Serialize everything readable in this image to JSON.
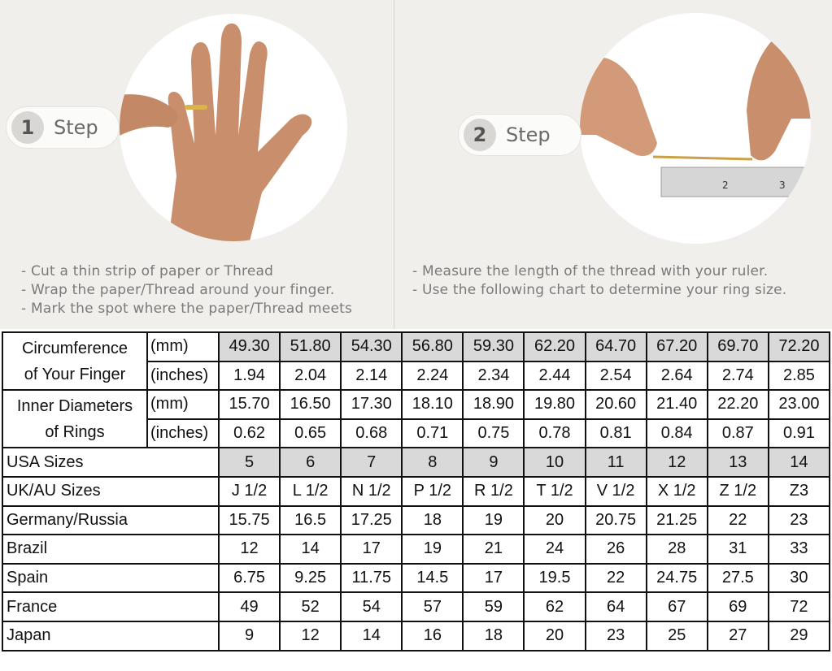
{
  "step1": {
    "number": "1",
    "label": "Step",
    "instructions": [
      "Cut a thin strip of paper or Thread",
      "Wrap the paper/Thread around your finger.",
      "Mark the spot where the paper/Thread meets"
    ]
  },
  "step2": {
    "number": "2",
    "label": "Step",
    "instructions": [
      "Measure the length of the thread with your ruler.",
      "Use the following chart to determine your ring size."
    ]
  },
  "colors": {
    "highlight_cell": "#d9d9d9",
    "background": "#f1efec"
  },
  "table": {
    "circumference": {
      "label_line1": "Circumference",
      "label_line2": "of Your Finger",
      "mm_unit": "(mm)",
      "in_unit": "(inches)",
      "mm": [
        "49.30",
        "51.80",
        "54.30",
        "56.80",
        "59.30",
        "62.20",
        "64.70",
        "67.20",
        "69.70",
        "72.20"
      ],
      "inches": [
        "1.94",
        "2.04",
        "2.14",
        "2.24",
        "2.34",
        "2.44",
        "2.54",
        "2.64",
        "2.74",
        "2.85"
      ]
    },
    "diameter": {
      "label_line1": "Inner Diameters",
      "label_line2": "of Rings",
      "mm_unit": "(mm)",
      "in_unit": "(inches)",
      "mm": [
        "15.70",
        "16.50",
        "17.30",
        "18.10",
        "18.90",
        "19.80",
        "20.60",
        "21.40",
        "22.20",
        "23.00"
      ],
      "inches": [
        "0.62",
        "0.65",
        "0.68",
        "0.71",
        "0.75",
        "0.78",
        "0.81",
        "0.84",
        "0.87",
        "0.91"
      ]
    },
    "rows": [
      {
        "label": "USA Sizes",
        "values": [
          "5",
          "6",
          "7",
          "8",
          "9",
          "10",
          "11",
          "12",
          "13",
          "14"
        ]
      },
      {
        "label": "UK/AU Sizes",
        "values": [
          "J 1/2",
          "L 1/2",
          "N 1/2",
          "P 1/2",
          "R 1/2",
          "T 1/2",
          "V 1/2",
          "X 1/2",
          "Z 1/2",
          "Z3"
        ]
      },
      {
        "label": "Germany/Russia",
        "values": [
          "15.75",
          "16.5",
          "17.25",
          "18",
          "19",
          "20",
          "20.75",
          "21.25",
          "22",
          "23"
        ]
      },
      {
        "label": "Brazil",
        "values": [
          "12",
          "14",
          "17",
          "19",
          "21",
          "24",
          "26",
          "28",
          "31",
          "33"
        ]
      },
      {
        "label": "Spain",
        "values": [
          "6.75",
          "9.25",
          "11.75",
          "14.5",
          "17",
          "19.5",
          "22",
          "24.75",
          "27.5",
          "30"
        ]
      },
      {
        "label": "France",
        "values": [
          "49",
          "52",
          "54",
          "57",
          "59",
          "62",
          "64",
          "67",
          "69",
          "72"
        ]
      },
      {
        "label": "Japan",
        "values": [
          "9",
          "12",
          "14",
          "16",
          "18",
          "20",
          "23",
          "25",
          "27",
          "29"
        ]
      }
    ]
  }
}
